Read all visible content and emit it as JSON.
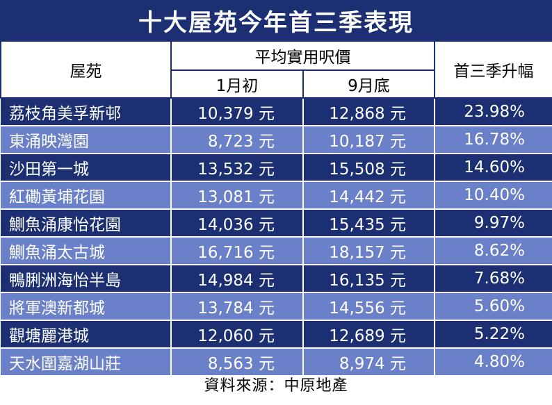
{
  "title": "十大屋苑今年首三季表現",
  "source": "資料來源：中原地產",
  "colors": {
    "header_bg": "#1b2f72",
    "row_dark": "#1b2f72",
    "row_light": "#6a80c8",
    "text_light": "#ffffff"
  },
  "chart_data": {
    "type": "table",
    "title": "十大屋苑今年首三季表現",
    "headers": {
      "estate": "屋苑",
      "avg_price_group": "平均實用呎價",
      "start_jan": "1月初",
      "end_sep": "9月底",
      "growth": "首三季升幅"
    },
    "rows": [
      {
        "estate": "荔枝角美孚新邨",
        "start_jan": "10,379 元",
        "end_sep": "12,868 元",
        "growth": "23.98%"
      },
      {
        "estate": "東涌映灣園",
        "start_jan": "8,723 元",
        "end_sep": "10,187 元",
        "growth": "16.78%"
      },
      {
        "estate": "沙田第一城",
        "start_jan": "13,532 元",
        "end_sep": "15,508 元",
        "growth": "14.60%"
      },
      {
        "estate": "紅磡黃埔花園",
        "start_jan": "13,081 元",
        "end_sep": "14,442 元",
        "growth": "10.40%"
      },
      {
        "estate": "鰂魚涌康怡花園",
        "start_jan": "14,036 元",
        "end_sep": "15,435 元",
        "growth": "9.97%"
      },
      {
        "estate": "鰂魚涌太古城",
        "start_jan": "16,716 元",
        "end_sep": "18,157 元",
        "growth": "8.62%"
      },
      {
        "estate": "鴨脷洲海怡半島",
        "start_jan": "14,984 元",
        "end_sep": "16,135 元",
        "growth": "7.68%"
      },
      {
        "estate": "將軍澳新都城",
        "start_jan": "13,784 元",
        "end_sep": "14,556 元",
        "growth": "5.60%"
      },
      {
        "estate": "觀塘麗港城",
        "start_jan": "12,060 元",
        "end_sep": "12,689 元",
        "growth": "5.22%"
      },
      {
        "estate": "天水圍嘉湖山莊",
        "start_jan": "8,563 元",
        "end_sep": "8,974 元",
        "growth": "4.80%"
      }
    ]
  }
}
